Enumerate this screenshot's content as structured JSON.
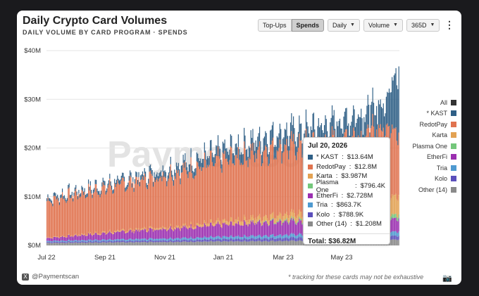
{
  "header": {
    "title": "Daily Crypto Card Volumes",
    "subtitle": "DAILY VOLUME BY CARD PROGRAM · SPENDS"
  },
  "controls": {
    "topups_label": "Top-Ups",
    "spends_label": "Spends",
    "interval_label": "Daily",
    "metric_label": "Volume",
    "range_label": "365D"
  },
  "watermark": "Paymentscan",
  "colors": {
    "All": "#333333",
    "KAST": "#2f5f86",
    "RedotPay": "#e0734f",
    "Karta": "#e3a253",
    "Plasma One": "#74c77b",
    "EtherFi": "#9b2fb0",
    "Tria": "#4f9ad0",
    "Kolo": "#5b4fbb",
    "Other": "#8a8a8a"
  },
  "legend": [
    "All",
    "* KAST",
    "RedotPay",
    "Karta",
    "Plasma One",
    "EtherFi",
    "Tria",
    "Kolo",
    "Other (14)"
  ],
  "chart_data": {
    "type": "bar",
    "stacked": true,
    "y_ticks": [
      "$0M",
      "$10M",
      "$20M",
      "$30M",
      "$40M"
    ],
    "ylim": [
      0,
      40
    ],
    "x_ticks": [
      "Jul 22",
      "Sep 21",
      "Nov 21",
      "Jan 21",
      "Mar 23",
      "May 23"
    ],
    "series": [
      {
        "name": "Other (14)",
        "keyframes": [
          [
            0,
            0.5
          ],
          [
            120,
            0.7
          ],
          [
            240,
            0.9
          ],
          [
            364,
            1.2
          ]
        ]
      },
      {
        "name": "Kolo",
        "keyframes": [
          [
            0,
            0.2
          ],
          [
            150,
            0.4
          ],
          [
            280,
            0.7
          ],
          [
            364,
            0.8
          ]
        ]
      },
      {
        "name": "Tria",
        "keyframes": [
          [
            0,
            0.2
          ],
          [
            150,
            0.4
          ],
          [
            280,
            0.7
          ],
          [
            364,
            0.86
          ]
        ]
      },
      {
        "name": "EtherFi",
        "keyframes": [
          [
            0,
            0.6
          ],
          [
            100,
            1.8
          ],
          [
            200,
            2.6
          ],
          [
            240,
            2.8
          ],
          [
            300,
            2.3
          ],
          [
            364,
            2.7
          ]
        ]
      },
      {
        "name": "Plasma One",
        "keyframes": [
          [
            0,
            0.0
          ],
          [
            200,
            0.0
          ],
          [
            260,
            0.3
          ],
          [
            364,
            0.8
          ]
        ]
      },
      {
        "name": "Karta",
        "keyframes": [
          [
            0,
            0.1
          ],
          [
            150,
            0.4
          ],
          [
            280,
            1.5
          ],
          [
            364,
            4.0
          ]
        ]
      },
      {
        "name": "RedotPay",
        "keyframes": [
          [
            0,
            7.5
          ],
          [
            60,
            9.0
          ],
          [
            120,
            10.5
          ],
          [
            180,
            12.5
          ],
          [
            240,
            13.8
          ],
          [
            300,
            14.0
          ],
          [
            350,
            14.5
          ],
          [
            364,
            12.8
          ]
        ]
      },
      {
        "name": "* KAST",
        "keyframes": [
          [
            0,
            0.6
          ],
          [
            100,
            1.0
          ],
          [
            180,
            2.0
          ],
          [
            240,
            3.0
          ],
          [
            300,
            3.8
          ],
          [
            350,
            5.0
          ],
          [
            364,
            13.6
          ]
        ]
      }
    ],
    "tooltip": {
      "date": "Jul 20, 2026",
      "rows": [
        {
          "name": "* KAST",
          "value": "$13.64M"
        },
        {
          "name": "RedotPay",
          "value": "$12.8M"
        },
        {
          "name": "Karta",
          "value": "$3.987M"
        },
        {
          "name": "Plasma One",
          "value": "$796.4K"
        },
        {
          "name": "EtherFi",
          "value": "$2.728M"
        },
        {
          "name": "Tria",
          "value": "$863.7K"
        },
        {
          "name": "Kolo",
          "value": "$788.9K"
        },
        {
          "name": "Other (14)",
          "value": "$1.208M"
        }
      ],
      "total": "Total: $36.82M"
    }
  },
  "footer": {
    "handle": "@Paymentscan",
    "note": "* tracking for these cards may not be exhaustive"
  }
}
